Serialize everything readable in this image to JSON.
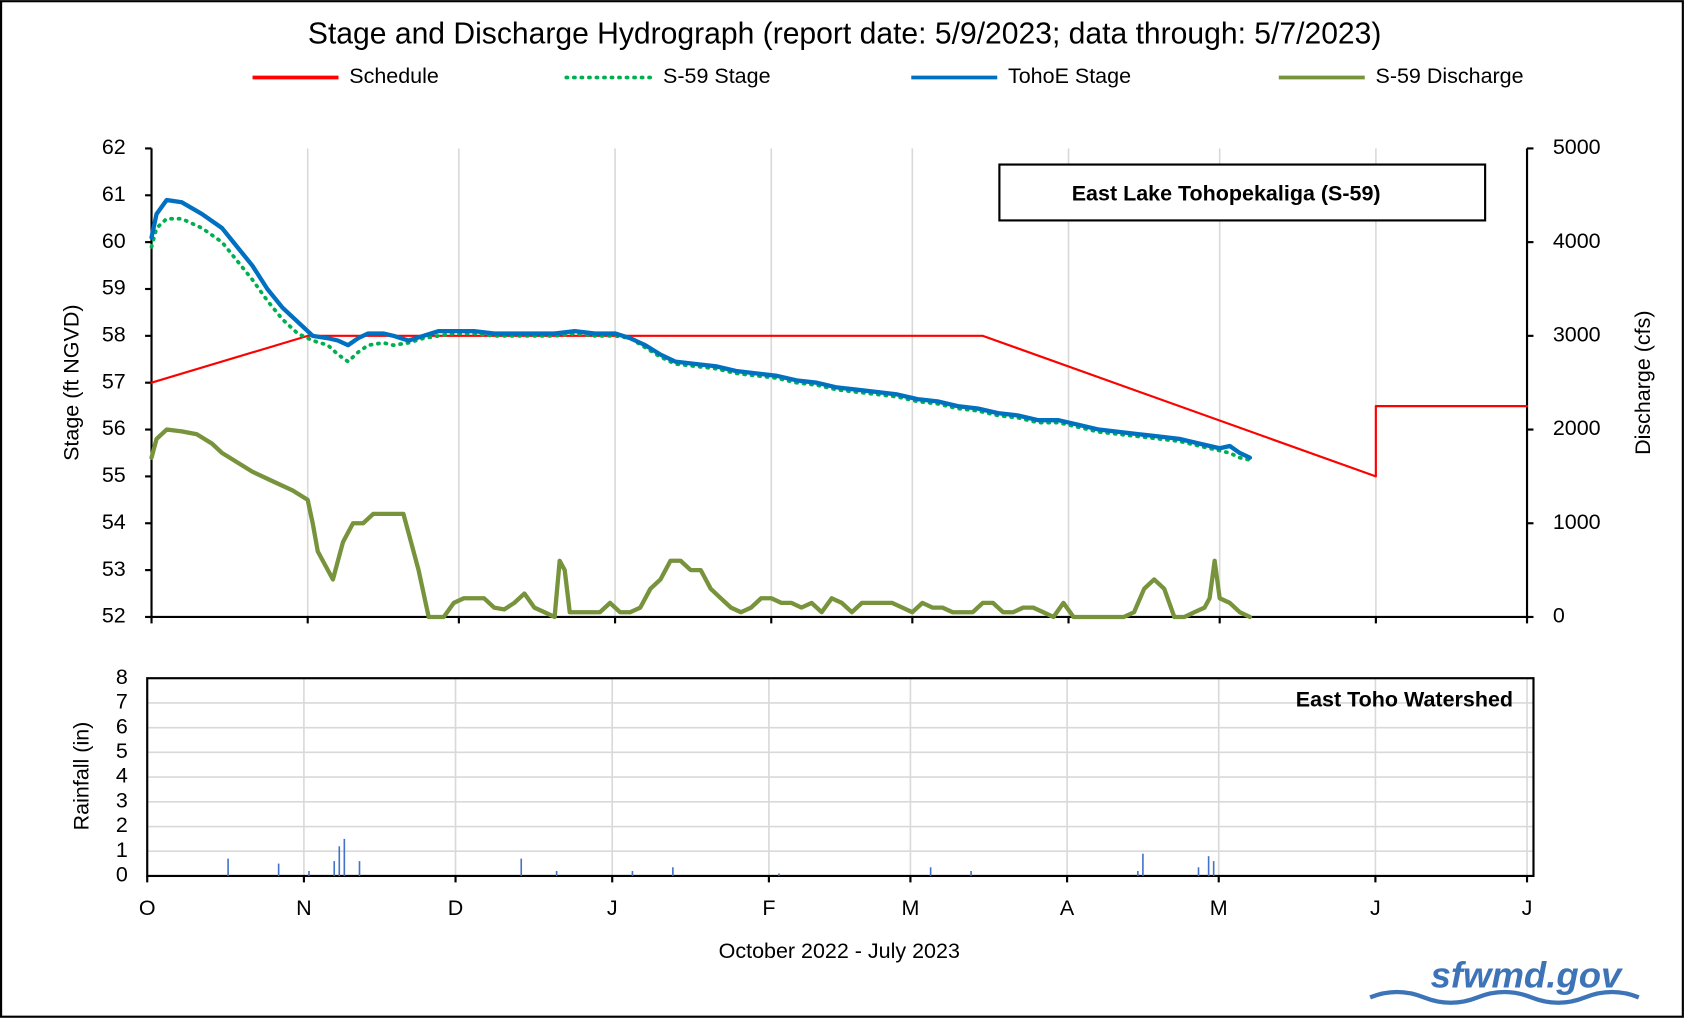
{
  "chart_data": [
    {
      "type": "line",
      "title": "Stage and Discharge Hydrograph  (report date: 5/9/2023; data through:  5/7/2023)",
      "annotation": "East Lake Tohopekaliga  (S-59)",
      "ylabel": "Stage  (ft NGVD)",
      "y2label": "Discharge  (cfs)",
      "legend": "top",
      "grid": "x",
      "xlim": [
        0,
        273
      ],
      "xticks": [
        0,
        31,
        61,
        92,
        123,
        151,
        182,
        212,
        243,
        273
      ],
      "ylim": [
        52,
        62
      ],
      "yticks": [
        52,
        53,
        54,
        55,
        56,
        57,
        58,
        59,
        60,
        61,
        62
      ],
      "y2lim": [
        0,
        5000
      ],
      "y2ticks": [
        0,
        1000,
        2000,
        3000,
        4000,
        5000
      ],
      "series": [
        {
          "name": "Schedule",
          "color": "#ff0000",
          "dash": "solid",
          "x": [
            0,
            31,
            165,
            243,
            243,
            273
          ],
          "values": [
            57,
            58,
            58,
            55,
            56.5,
            56.5
          ]
        },
        {
          "name": "S-59 Stage",
          "color": "#00b050",
          "dash": "dotted",
          "x": [
            0,
            1,
            3,
            6,
            10,
            14,
            17,
            20,
            23,
            26,
            29,
            32,
            35,
            37,
            39,
            41,
            43,
            46,
            48,
            51,
            54,
            57,
            60,
            64,
            68,
            72,
            76,
            80,
            84,
            88,
            92,
            95,
            98,
            101,
            104,
            108,
            112,
            116,
            120,
            124,
            128,
            132,
            136,
            140,
            144,
            148,
            152,
            156,
            160,
            164,
            168,
            172,
            176,
            180,
            184,
            188,
            192,
            196,
            200,
            204,
            208,
            212,
            214,
            216,
            218
          ],
          "values": [
            59.9,
            60.3,
            60.5,
            60.5,
            60.3,
            60.0,
            59.6,
            59.2,
            58.75,
            58.35,
            58.05,
            57.9,
            57.8,
            57.6,
            57.45,
            57.65,
            57.8,
            57.85,
            57.8,
            57.85,
            57.95,
            58.0,
            58.05,
            58.05,
            58.0,
            58.0,
            58.0,
            58.0,
            58.05,
            58.0,
            58.0,
            57.95,
            57.75,
            57.55,
            57.4,
            57.35,
            57.3,
            57.2,
            57.15,
            57.1,
            57.0,
            56.95,
            56.85,
            56.8,
            56.75,
            56.7,
            56.6,
            56.55,
            56.45,
            56.4,
            56.3,
            56.25,
            56.15,
            56.15,
            56.05,
            55.95,
            55.9,
            55.85,
            55.8,
            55.75,
            55.65,
            55.55,
            55.5,
            55.4,
            55.35
          ]
        },
        {
          "name": "TohoE Stage",
          "color": "#0070c0",
          "dash": "solid",
          "x": [
            0,
            1,
            3,
            6,
            10,
            14,
            17,
            20,
            23,
            26,
            29,
            32,
            35,
            37,
            39,
            41,
            43,
            46,
            48,
            51,
            54,
            57,
            60,
            64,
            68,
            72,
            76,
            80,
            84,
            88,
            92,
            95,
            98,
            101,
            104,
            108,
            112,
            116,
            120,
            124,
            128,
            132,
            136,
            140,
            144,
            148,
            152,
            156,
            160,
            164,
            168,
            172,
            176,
            180,
            184,
            188,
            192,
            196,
            200,
            204,
            208,
            212,
            214,
            216,
            218
          ],
          "values": [
            60.1,
            60.6,
            60.9,
            60.85,
            60.6,
            60.3,
            59.9,
            59.5,
            59.0,
            58.6,
            58.3,
            58.0,
            57.95,
            57.9,
            57.8,
            57.95,
            58.05,
            58.05,
            58.0,
            57.9,
            58.0,
            58.1,
            58.1,
            58.1,
            58.05,
            58.05,
            58.05,
            58.05,
            58.1,
            58.05,
            58.05,
            57.95,
            57.8,
            57.6,
            57.45,
            57.4,
            57.35,
            57.25,
            57.2,
            57.15,
            57.05,
            57.0,
            56.9,
            56.85,
            56.8,
            56.75,
            56.65,
            56.6,
            56.5,
            56.45,
            56.35,
            56.3,
            56.2,
            56.2,
            56.1,
            56.0,
            55.95,
            55.9,
            55.85,
            55.8,
            55.7,
            55.6,
            55.65,
            55.5,
            55.4
          ]
        },
        {
          "name": "S-59 Discharge",
          "color": "#77933c",
          "dash": "solid",
          "axis": "y2",
          "x": [
            0,
            1,
            3,
            6,
            9,
            12,
            14,
            17,
            20,
            24,
            28,
            31,
            32,
            33,
            35,
            36,
            38,
            40,
            42,
            44,
            47,
            50,
            51,
            53,
            55,
            58,
            60,
            62,
            64,
            66,
            68,
            70,
            72,
            74,
            76,
            78,
            80,
            81,
            82,
            83,
            85,
            87,
            89,
            91,
            93,
            95,
            97,
            99,
            101,
            103,
            105,
            107,
            109,
            111,
            113,
            115,
            117,
            119,
            121,
            123,
            125,
            127,
            129,
            131,
            133,
            135,
            137,
            139,
            141,
            143,
            145,
            147,
            149,
            151,
            153,
            155,
            157,
            159,
            161,
            163,
            165,
            167,
            169,
            171,
            173,
            175,
            177,
            179,
            181,
            183,
            185,
            187,
            189,
            191,
            193,
            195,
            197,
            199,
            201,
            203,
            205,
            207,
            209,
            210,
            211,
            212,
            214,
            216,
            218
          ],
          "values": [
            1700,
            1900,
            2000,
            1980,
            1950,
            1850,
            1750,
            1650,
            1550,
            1450,
            1350,
            1250,
            1000,
            700,
            500,
            400,
            800,
            1000,
            1000,
            1100,
            1100,
            1100,
            900,
            500,
            0,
            0,
            150,
            200,
            200,
            200,
            100,
            80,
            150,
            250,
            100,
            50,
            0,
            600,
            500,
            50,
            50,
            50,
            50,
            150,
            50,
            50,
            100,
            300,
            400,
            600,
            600,
            500,
            500,
            300,
            200,
            100,
            50,
            100,
            200,
            200,
            150,
            150,
            100,
            150,
            50,
            200,
            150,
            50,
            150,
            150,
            150,
            150,
            100,
            50,
            150,
            100,
            100,
            50,
            50,
            50,
            150,
            150,
            50,
            50,
            100,
            100,
            50,
            0,
            150,
            0,
            0,
            0,
            0,
            0,
            0,
            50,
            300,
            400,
            300,
            0,
            0,
            50,
            100,
            200,
            600,
            200,
            150,
            50,
            0
          ]
        }
      ]
    },
    {
      "type": "bar",
      "annotation": "East Toho Watershed",
      "ylabel": "Rainfall  (in)",
      "xlabel": "October 2022 - July 2023",
      "grid": "both",
      "color": "#4472c4",
      "xlim": [
        0,
        273
      ],
      "xticks": [
        {
          "value": 0,
          "label": "O"
        },
        {
          "value": 31,
          "label": "N"
        },
        {
          "value": 61,
          "label": "D"
        },
        {
          "value": 92,
          "label": "J"
        },
        {
          "value": 123,
          "label": "F"
        },
        {
          "value": 151,
          "label": "M"
        },
        {
          "value": 182,
          "label": "A"
        },
        {
          "value": 212,
          "label": "M"
        },
        {
          "value": 243,
          "label": "J"
        },
        {
          "value": 273,
          "label": "J"
        }
      ],
      "ylim": [
        0,
        8
      ],
      "yticks": [
        0,
        1,
        2,
        3,
        4,
        5,
        6,
        7,
        8
      ],
      "x": [
        16,
        26,
        32,
        37,
        38,
        39,
        42,
        74,
        81,
        96,
        104,
        125,
        155,
        163,
        196,
        197,
        208,
        210,
        211
      ],
      "values": [
        0.7,
        0.5,
        0.2,
        0.6,
        1.2,
        1.5,
        0.6,
        0.7,
        0.2,
        0.2,
        0.35,
        0.1,
        0.35,
        0.2,
        0.2,
        0.9,
        0.35,
        0.8,
        0.6
      ]
    }
  ],
  "logo": "sfwmd.gov"
}
